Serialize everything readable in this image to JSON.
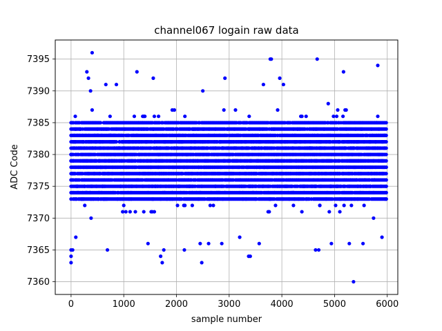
{
  "chart_data": {
    "type": "scatter",
    "title": "channel067 logain raw data",
    "xlabel": "sample number",
    "ylabel": "ADC Code",
    "xlim": [
      -300,
      6200
    ],
    "ylim": [
      7358,
      7398
    ],
    "xticks": [
      0,
      1000,
      2000,
      3000,
      4000,
      5000,
      6000
    ],
    "yticks": [
      7360,
      7365,
      7370,
      7375,
      7380,
      7385,
      7390,
      7395
    ],
    "grid": true,
    "marker_color": "#0000ff",
    "n_samples": 6000,
    "x_step": 20,
    "dense_band": {
      "core": [
        7373,
        7385
      ],
      "typical_spread": [
        7368,
        7390
      ]
    },
    "outliers": [
      {
        "x": 0,
        "y": 7363
      },
      {
        "x": 0,
        "y": 7364
      },
      {
        "x": 0,
        "y": 7365
      },
      {
        "x": 30,
        "y": 7365
      },
      {
        "x": 90,
        "y": 7367
      },
      {
        "x": 300,
        "y": 7393
      },
      {
        "x": 330,
        "y": 7392
      },
      {
        "x": 400,
        "y": 7396
      },
      {
        "x": 370,
        "y": 7390
      },
      {
        "x": 660,
        "y": 7391
      },
      {
        "x": 690,
        "y": 7365
      },
      {
        "x": 860,
        "y": 7391
      },
      {
        "x": 1250,
        "y": 7393
      },
      {
        "x": 1460,
        "y": 7366
      },
      {
        "x": 1560,
        "y": 7392
      },
      {
        "x": 1700,
        "y": 7364
      },
      {
        "x": 1730,
        "y": 7363
      },
      {
        "x": 1760,
        "y": 7365
      },
      {
        "x": 2150,
        "y": 7365
      },
      {
        "x": 2450,
        "y": 7366
      },
      {
        "x": 2480,
        "y": 7363
      },
      {
        "x": 2500,
        "y": 7390
      },
      {
        "x": 2610,
        "y": 7366
      },
      {
        "x": 2860,
        "y": 7366
      },
      {
        "x": 2920,
        "y": 7392
      },
      {
        "x": 3200,
        "y": 7367
      },
      {
        "x": 3370,
        "y": 7364
      },
      {
        "x": 3400,
        "y": 7364
      },
      {
        "x": 3570,
        "y": 7366
      },
      {
        "x": 3650,
        "y": 7391
      },
      {
        "x": 3780,
        "y": 7395
      },
      {
        "x": 3800,
        "y": 7395
      },
      {
        "x": 3960,
        "y": 7392
      },
      {
        "x": 4030,
        "y": 7391
      },
      {
        "x": 4640,
        "y": 7365
      },
      {
        "x": 4670,
        "y": 7395
      },
      {
        "x": 4700,
        "y": 7365
      },
      {
        "x": 4940,
        "y": 7366
      },
      {
        "x": 5170,
        "y": 7393
      },
      {
        "x": 5280,
        "y": 7366
      },
      {
        "x": 5360,
        "y": 7360
      },
      {
        "x": 5540,
        "y": 7366
      },
      {
        "x": 5820,
        "y": 7394
      },
      {
        "x": 5900,
        "y": 7367
      }
    ]
  }
}
